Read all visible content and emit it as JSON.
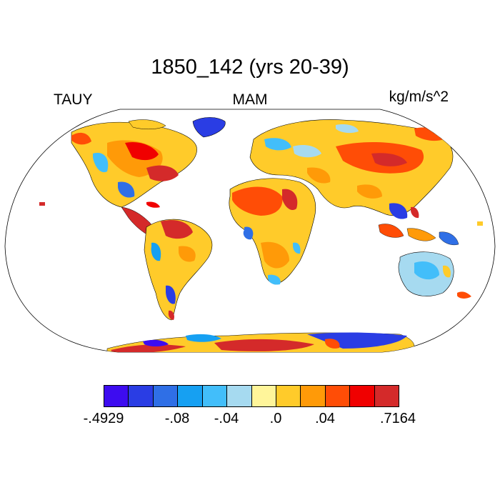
{
  "title": "1850_142 (yrs 20-39)",
  "left_label": "TAUY",
  "center_label": "MAM",
  "right_label": "kg/m/s^2",
  "colorbar": {
    "colors": [
      "#3d0cf0",
      "#2a3de4",
      "#2f6fe6",
      "#16a0f2",
      "#42befa",
      "#a6daf0",
      "#fff59a",
      "#ffcb2a",
      "#ff9a08",
      "#ff4d06",
      "#f00000",
      "#d42a2a"
    ],
    "labels": [
      ".4929-",
      "-.08",
      "-.04",
      ".0",
      ".04",
      ".7164"
    ],
    "label_texts": [
      "-.4929",
      "-.08",
      "-.04",
      ".0",
      ".04",
      ".7164"
    ]
  }
}
